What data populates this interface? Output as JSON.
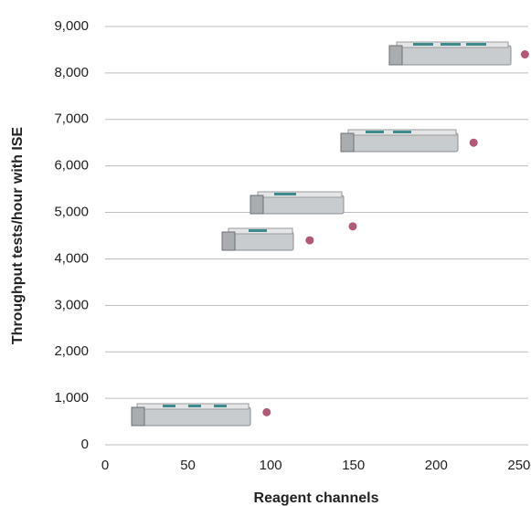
{
  "chart_data": {
    "type": "scatter",
    "x_label": "Reagent channels",
    "y_label": "Throughput tests/hour with ISE",
    "series": [
      {
        "color": "#b05a78",
        "x": [
          102,
          128,
          154,
          227,
          258
        ],
        "values": [
          700,
          4400,
          4700,
          6500,
          8400
        ]
      }
    ],
    "xlim": [
      0,
      260
    ],
    "xticks": [
      0,
      50,
      100,
      150,
      200,
      250
    ],
    "ylim": [
      0,
      9000
    ],
    "yticks": [
      0,
      {
        "value": 1000,
        "label": "1,000"
      },
      {
        "value": 2000,
        "label": "2,000"
      },
      {
        "value": 3000,
        "label": "3,000"
      },
      {
        "value": 4000,
        "label": "4,000"
      },
      {
        "value": 5000,
        "label": "5,000"
      },
      {
        "value": 6000,
        "label": "6,000"
      },
      {
        "value": 7000,
        "label": "7,000"
      },
      {
        "value": 8000,
        "label": "8,000"
      },
      {
        "value": 9000,
        "label": "9,000"
      }
    ],
    "grid": true
  }
}
